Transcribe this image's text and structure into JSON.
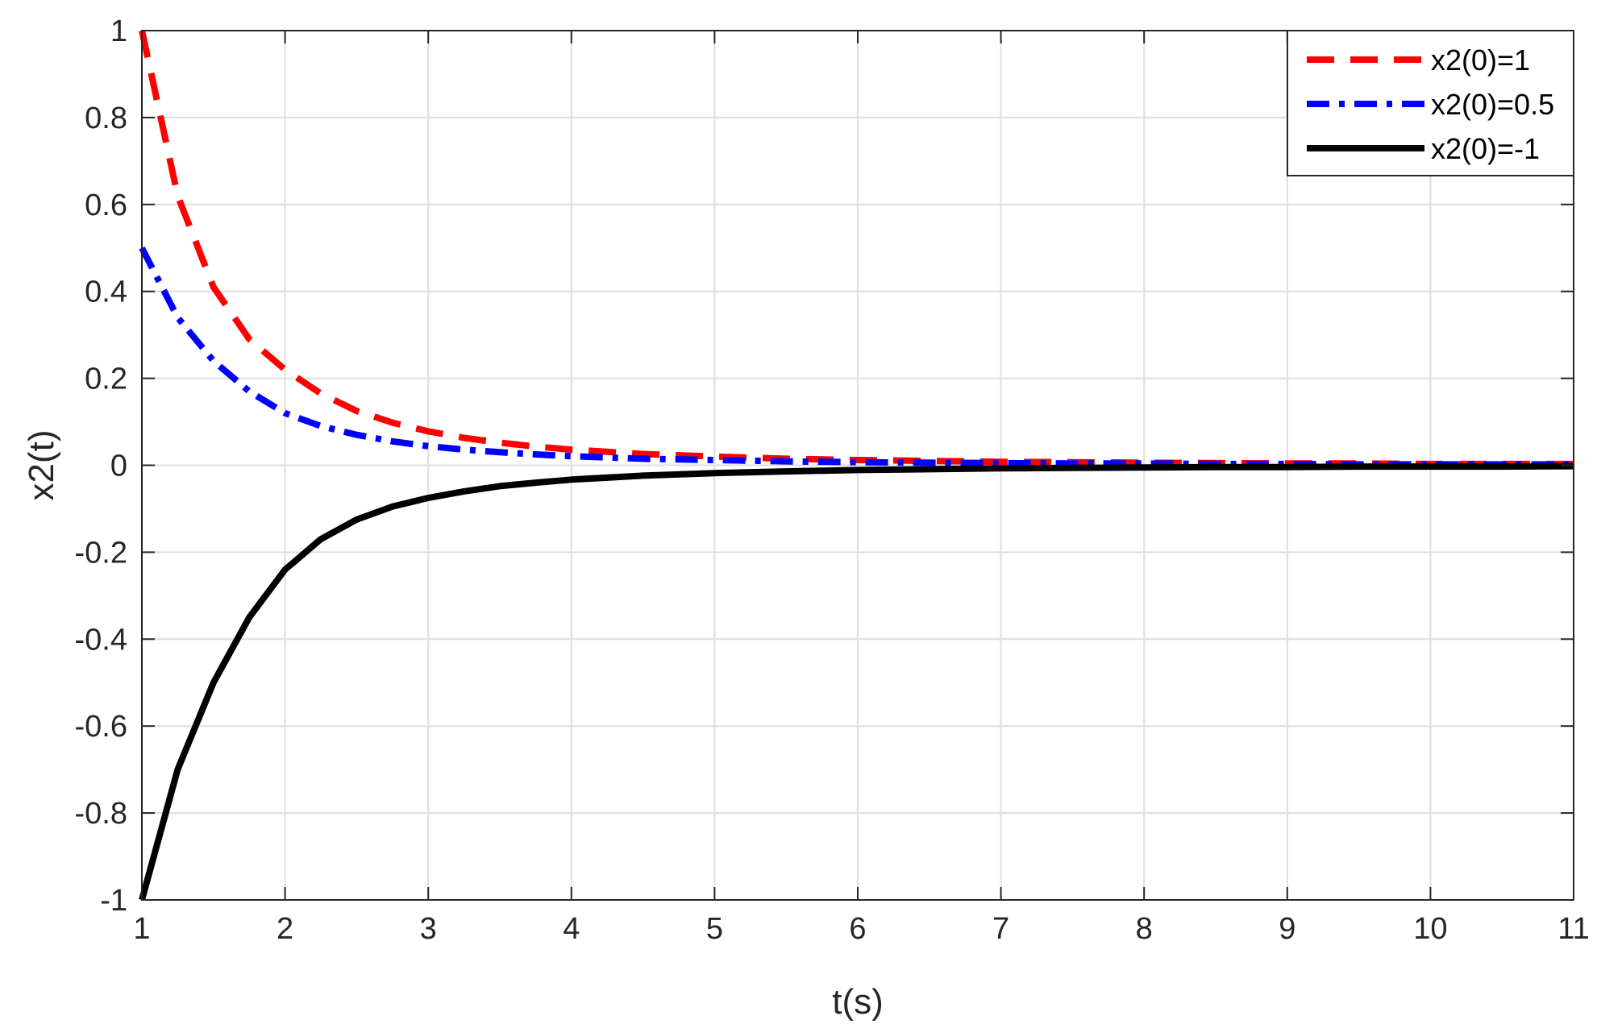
{
  "chart_data": {
    "type": "line",
    "xlabel": "t(s)",
    "ylabel": "x2(t)",
    "xlim": [
      1,
      11
    ],
    "ylim": [
      -1,
      1
    ],
    "xticks": [
      1,
      2,
      3,
      4,
      5,
      6,
      7,
      8,
      9,
      10,
      11
    ],
    "xtick_labels": [
      "1",
      "2",
      "3",
      "4",
      "5",
      "6",
      "7",
      "8",
      "9",
      "10",
      "11"
    ],
    "yticks": [
      -1,
      -0.8,
      -0.6,
      -0.4,
      -0.2,
      0,
      0.2,
      0.4,
      0.6,
      0.8,
      1
    ],
    "ytick_labels": [
      "-1",
      "-0.8",
      "-0.6",
      "-0.4",
      "-0.2",
      "0",
      "0.2",
      "0.4",
      "0.6",
      "0.8",
      "1"
    ],
    "grid": true,
    "legend_position": "top-right",
    "x": [
      1,
      1.25,
      1.5,
      1.75,
      2,
      2.25,
      2.5,
      2.75,
      3,
      3.25,
      3.5,
      3.75,
      4,
      4.5,
      5,
      5.5,
      6,
      6.5,
      7,
      7.5,
      8,
      8.5,
      9,
      9.5,
      10,
      10.5,
      11
    ],
    "series": [
      {
        "name": "x2(0)=1",
        "color": "#ff0000",
        "style": "dashed",
        "values": [
          1,
          0.62,
          0.41,
          0.29,
          0.22,
          0.165,
          0.125,
          0.098,
          0.078,
          0.063,
          0.052,
          0.043,
          0.036,
          0.026,
          0.02,
          0.015,
          0.012,
          0.01,
          0.008,
          0.007,
          0.006,
          0.005,
          0.004,
          0.004,
          0.003,
          0.003,
          0.003
        ]
      },
      {
        "name": "x2(0)=0.5",
        "color": "#0000ff",
        "style": "dashdot",
        "values": [
          0.5,
          0.34,
          0.24,
          0.17,
          0.12,
          0.09,
          0.07,
          0.055,
          0.044,
          0.036,
          0.03,
          0.025,
          0.021,
          0.015,
          0.012,
          0.009,
          0.007,
          0.006,
          0.005,
          0.004,
          0.004,
          0.003,
          0.003,
          0.002,
          0.002,
          0.002,
          0.002
        ]
      },
      {
        "name": "x2(0)=-1",
        "color": "#000000",
        "style": "solid",
        "values": [
          -1,
          -0.7,
          -0.5,
          -0.35,
          -0.24,
          -0.17,
          -0.125,
          -0.095,
          -0.075,
          -0.06,
          -0.048,
          -0.04,
          -0.033,
          -0.024,
          -0.018,
          -0.014,
          -0.011,
          -0.009,
          -0.007,
          -0.006,
          -0.005,
          -0.004,
          -0.004,
          -0.003,
          -0.003,
          -0.003,
          -0.002
        ]
      }
    ]
  }
}
